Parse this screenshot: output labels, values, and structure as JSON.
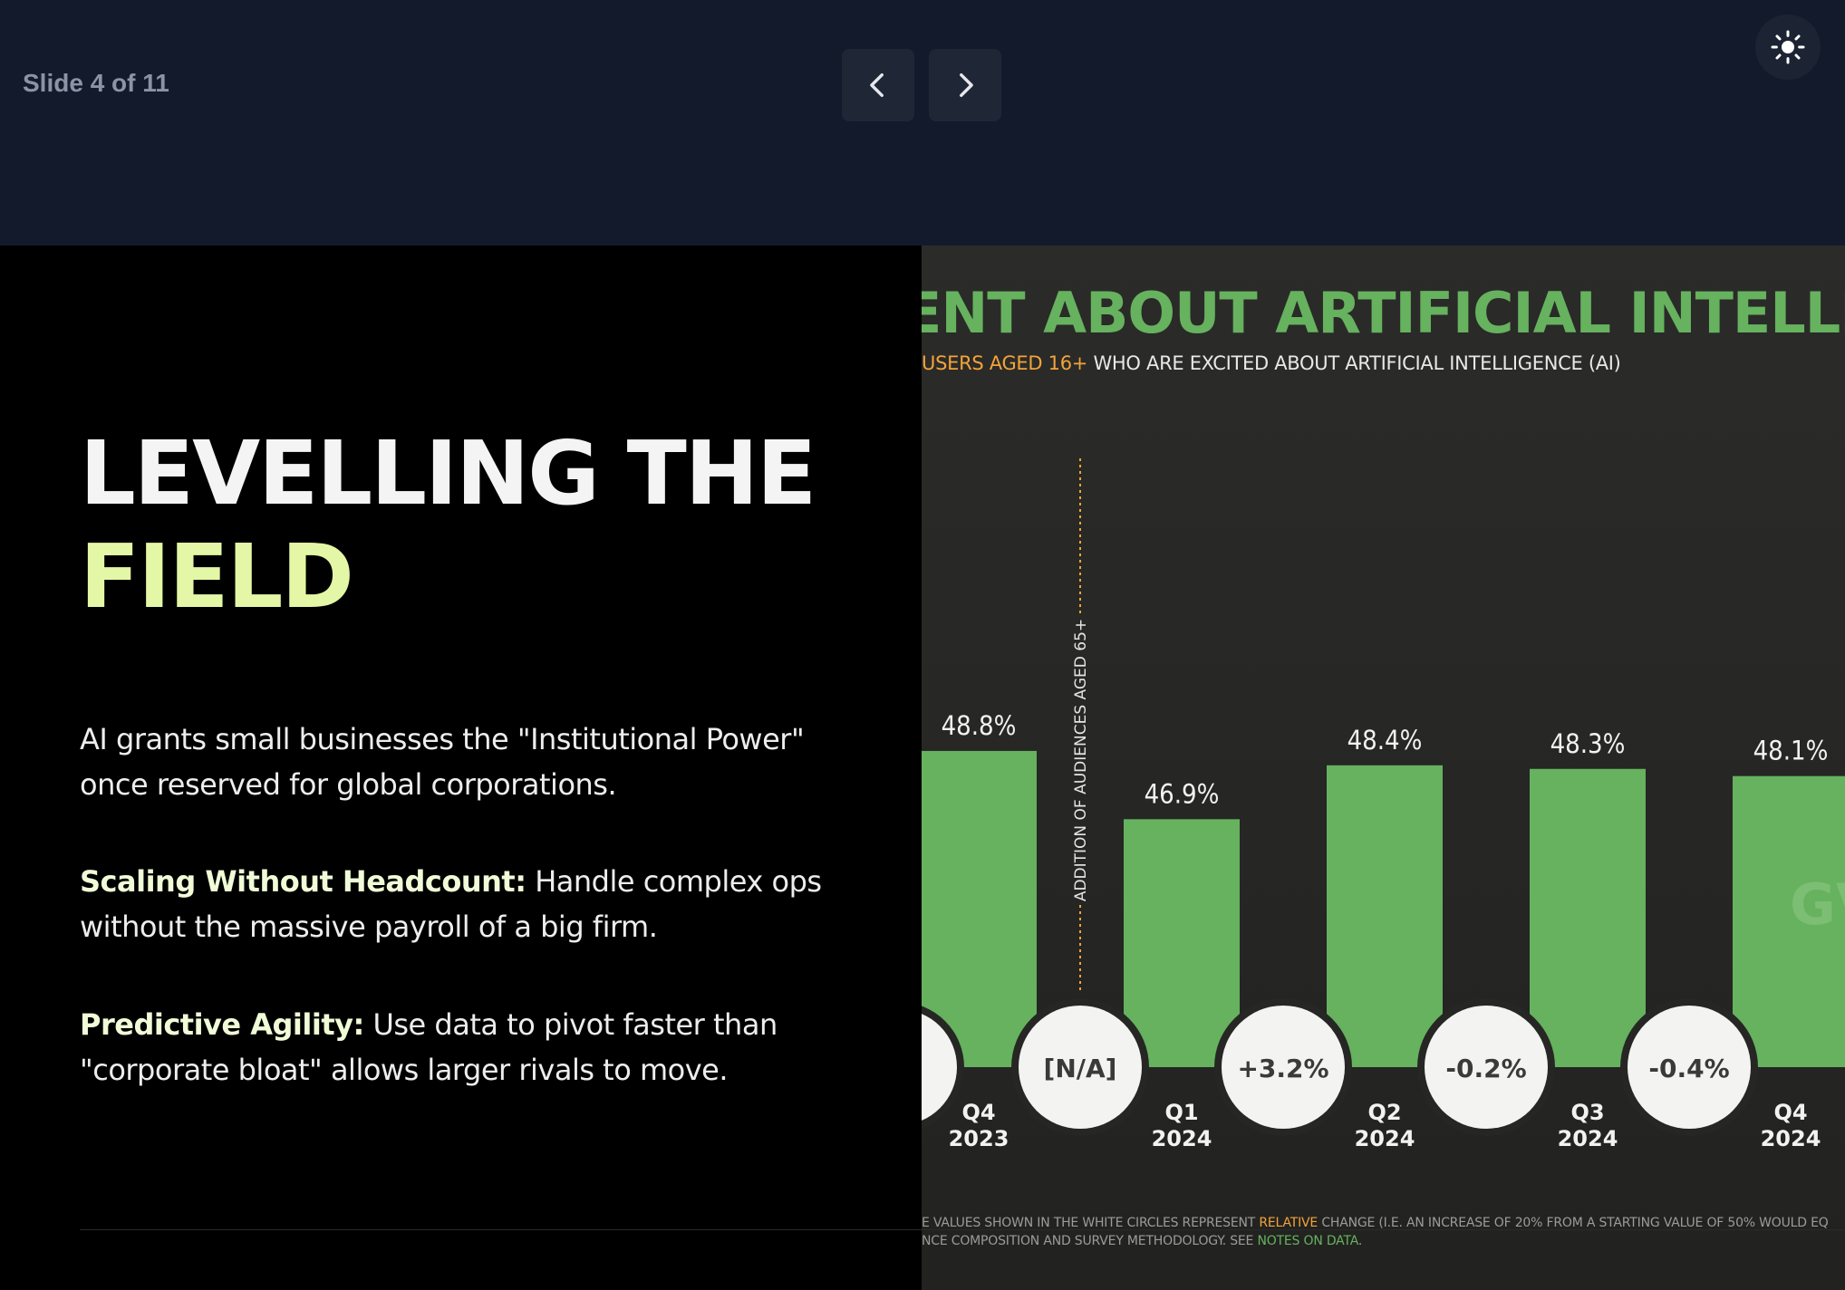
{
  "header": {
    "slide_counter": "Slide 4 of 11",
    "prev_icon": "chevron-left-icon",
    "next_icon": "chevron-right-icon",
    "theme_icon": "sun-icon"
  },
  "slide": {
    "headline_line1": "LEVELLING THE",
    "headline_line2": "FIELD",
    "intro": "AI grants small businesses the \"Institutional Power\" once reserved for global corporations.",
    "point1_title": "Scaling Without Headcount:",
    "point1_text": " Handle complex ops without the massive payroll of a big firm.",
    "point2_title": "Predictive Agility:",
    "point2_text": " Use data to pivot faster than \"corporate bloat\" allows larger rivals to move."
  },
  "chart_image": {
    "title": "ENT ABOUT ARTIFICIAL INTELLIGENC",
    "subtitle_highlight": "USERS AGED 16+",
    "subtitle_rest": " WHO ARE EXCITED ABOUT ARTIFICIAL INTELLIGENCE (AI)",
    "divider_label": "ADDITION OF AUDIENCES AGED 65+",
    "watermark": "GV",
    "footnote_line1_a": "E VALUES SHOWN IN THE WHITE CIRCLES REPRESENT ",
    "footnote_line1_b": "RELATIVE",
    "footnote_line1_c": " CHANGE (I.E. AN INCREASE OF 20% FROM A STARTING VALUE OF 50% WOULD EQ",
    "footnote_line2_a": "NCE COMPOSITION AND SURVEY METHODOLOGY. SEE ",
    "footnote_line2_b": "NOTES ON DATA",
    "footnote_line2_c": ".",
    "colors": {
      "bar": "#66b25e",
      "circle": "#f3f3f1",
      "divider": "#f3a33a"
    }
  },
  "chart_data": {
    "type": "bar",
    "categories": [
      "Q4 2023",
      "Q1 2024",
      "Q2 2024",
      "Q3 2024",
      "Q4 2024"
    ],
    "category_lines": [
      [
        "Q4",
        "2023"
      ],
      [
        "Q1",
        "2024"
      ],
      [
        "Q2",
        "2024"
      ],
      [
        "Q3",
        "2024"
      ],
      [
        "Q4",
        "2024"
      ]
    ],
    "values": [
      48.8,
      46.9,
      48.4,
      48.3,
      48.1
    ],
    "value_labels": [
      "48.8%",
      "46.9%",
      "48.4%",
      "48.3%",
      "48.1%"
    ],
    "change_labels": [
      "[N/A]",
      "+3.2%",
      "-0.2%",
      "-0.4%"
    ],
    "ylim": [
      0,
      50
    ]
  }
}
